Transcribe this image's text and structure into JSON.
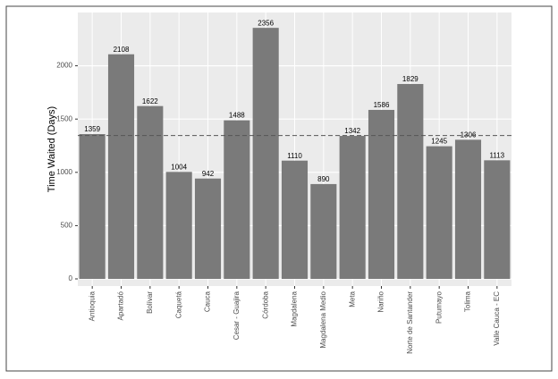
{
  "chart_data": {
    "type": "bar",
    "y_label": "Time Waited (Days)",
    "categories": [
      "Antioquia",
      "Apartadó",
      "Bolívar",
      "Caquetá",
      "Cauca",
      "Cesar - Guajira",
      "Córdoba",
      "Magdalena",
      "Magdalena Medio",
      "Meta",
      "Nariño",
      "Norte de Santander",
      "Putumayo",
      "Tolima",
      "Valle Cauca - EC"
    ],
    "values": [
      1359,
      2108,
      1622,
      1004,
      942,
      1488,
      2356,
      1110,
      890,
      1342,
      1586,
      1829,
      1245,
      1306,
      1113
    ],
    "color": "#7a7a7a",
    "hline": 1345,
    "ylim": [
      -67,
      2500
    ],
    "yticks": [
      0,
      500,
      1000,
      1500,
      2000
    ],
    "grid": true
  }
}
